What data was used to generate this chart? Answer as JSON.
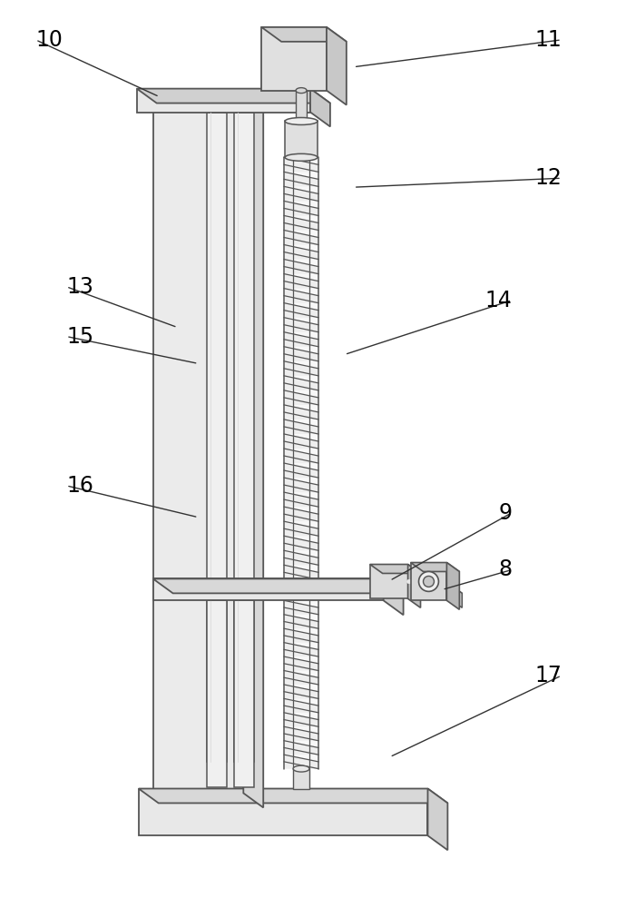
{
  "background_color": "#ffffff",
  "line_color": "#555555",
  "label_fontsize": 17,
  "labels": [
    [
      "10",
      38,
      42,
      175,
      105,
      "left"
    ],
    [
      "11",
      620,
      42,
      390,
      72,
      "right"
    ],
    [
      "12",
      620,
      195,
      390,
      205,
      "right"
    ],
    [
      "13",
      72,
      315,
      195,
      360,
      "left"
    ],
    [
      "14",
      565,
      330,
      380,
      390,
      "right"
    ],
    [
      "15",
      72,
      370,
      218,
      400,
      "left"
    ],
    [
      "16",
      72,
      535,
      218,
      570,
      "left"
    ],
    [
      "9",
      565,
      565,
      430,
      640,
      "right"
    ],
    [
      "8",
      565,
      628,
      488,
      650,
      "right"
    ],
    [
      "17",
      620,
      745,
      430,
      835,
      "right"
    ]
  ]
}
